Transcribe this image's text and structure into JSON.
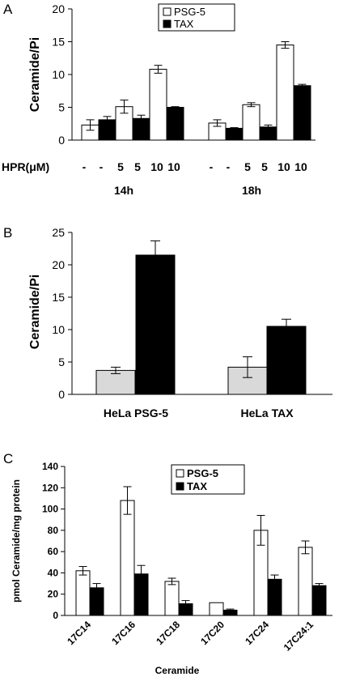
{
  "chart_data": [
    {
      "panel": "A",
      "type": "bar",
      "ylabel": "Ceramide/Pi",
      "ylim": [
        0,
        20
      ],
      "yticks": [
        "0",
        "5",
        "10",
        "15",
        "20"
      ],
      "xlabel_row": "HPR(μM)",
      "hpr_labels": [
        "-",
        "-",
        "5",
        "5",
        "10",
        "10",
        "-",
        "-",
        "5",
        "5",
        "10",
        "10"
      ],
      "group_labels": [
        "14h",
        "18h"
      ],
      "legend": [
        "PSG-5",
        "TAX"
      ],
      "legend_placement": "top-center",
      "colors": {
        "PSG-5": "#ffffff",
        "TAX": "#000000"
      },
      "bars": [
        {
          "series": "PSG-5",
          "value": 2.3,
          "err": 0.8
        },
        {
          "series": "TAX",
          "value": 3.1,
          "err": 0.5
        },
        {
          "series": "PSG-5",
          "value": 5.1,
          "err": 1.0
        },
        {
          "series": "TAX",
          "value": 3.3,
          "err": 0.5
        },
        {
          "series": "PSG-5",
          "value": 10.8,
          "err": 0.6
        },
        {
          "series": "TAX",
          "value": 5.0,
          "err": 0.1
        },
        {
          "series": "PSG-5",
          "value": 2.6,
          "err": 0.5
        },
        {
          "series": "TAX",
          "value": 1.8,
          "err": 0.1
        },
        {
          "series": "PSG-5",
          "value": 5.4,
          "err": 0.3
        },
        {
          "series": "TAX",
          "value": 2.0,
          "err": 0.3
        },
        {
          "series": "PSG-5",
          "value": 14.5,
          "err": 0.5
        },
        {
          "series": "TAX",
          "value": 8.3,
          "err": 0.2
        }
      ]
    },
    {
      "panel": "B",
      "type": "bar",
      "ylabel": "Ceramide/Pi",
      "ylim": [
        0,
        25
      ],
      "yticks": [
        "0",
        "5",
        "10",
        "15",
        "20",
        "25"
      ],
      "categories": [
        "HeLa PSG-5",
        "HeLa TAX"
      ],
      "colors": {
        "light": "#d9d9d9",
        "dark": "#000000"
      },
      "bars": [
        {
          "category": "HeLa PSG-5",
          "value": 3.7,
          "err": 0.5,
          "color": "light"
        },
        {
          "category": "HeLa PSG-5",
          "value": 21.5,
          "err": 2.2,
          "color": "dark"
        },
        {
          "category": "HeLa TAX",
          "value": 4.2,
          "err": 1.6,
          "color": "light"
        },
        {
          "category": "HeLa TAX",
          "value": 10.5,
          "err": 1.1,
          "color": "dark"
        }
      ]
    },
    {
      "panel": "C",
      "type": "bar",
      "ylabel": "pmol Ceramide/mg protein",
      "xlabel": "Ceramide",
      "ylim": [
        0,
        140
      ],
      "yticks": [
        "0",
        "20",
        "40",
        "60",
        "80",
        "100",
        "120",
        "140"
      ],
      "categories": [
        "17C14",
        "17C16",
        "17C18",
        "17C20",
        "17C24",
        "17C24:1"
      ],
      "legend": [
        "PSG-5",
        "TAX"
      ],
      "legend_placement": "top-center",
      "colors": {
        "PSG-5": "#ffffff",
        "TAX": "#000000"
      },
      "series": [
        {
          "name": "PSG-5",
          "values": [
            42,
            108,
            32,
            12,
            80,
            64
          ],
          "err": [
            4,
            13,
            3,
            0,
            14,
            6
          ]
        },
        {
          "name": "TAX",
          "values": [
            26,
            39,
            11,
            5,
            34,
            28
          ],
          "err": [
            4,
            8,
            3,
            1,
            4,
            2
          ]
        }
      ]
    }
  ]
}
